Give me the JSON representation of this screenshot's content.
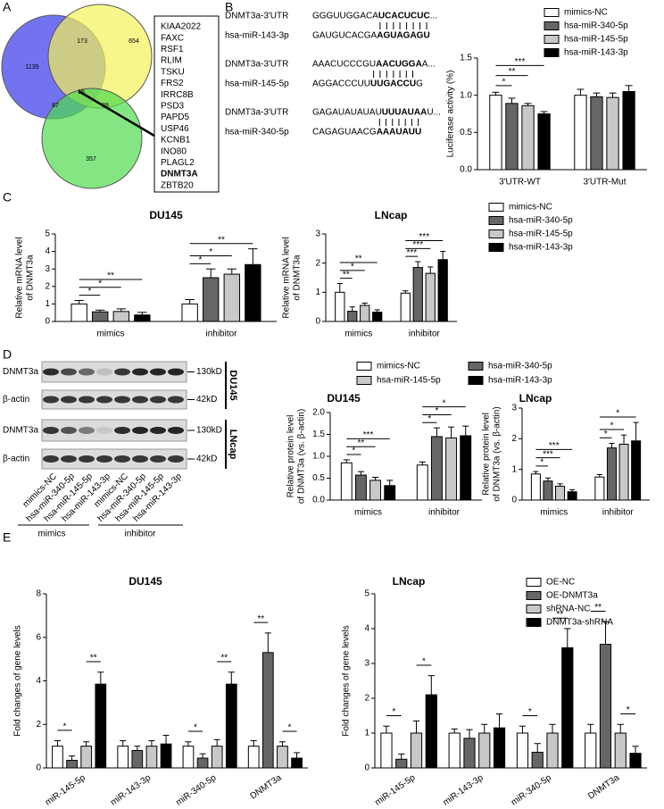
{
  "panels": [
    "A",
    "B",
    "C",
    "D",
    "E"
  ],
  "venn": {
    "counts": [
      1135,
      173,
      654,
      67,
      15,
      38,
      357
    ],
    "genes": [
      "KIAA2022",
      "FAXC",
      "RSF1",
      "RLIM",
      "TSKU",
      "FRS2",
      "IRRC8B",
      "PSD3",
      "PAPD5",
      "USP46",
      "KCNB1",
      "INO80",
      "PLAGL2",
      "DNMT3A",
      "ZBTB20"
    ],
    "bold_gene": 13
  },
  "sequences": [
    {
      "target": {
        "label": "DNMT3a-3′UTR",
        "parts": [
          "GGGUUGGACA",
          "UCACUCUC",
          "..."
        ]
      },
      "mirna": {
        "label": "hsa-miR-143-3p",
        "parts": [
          "GAUGUCACGA",
          "AGUAGAGU"
        ]
      }
    },
    {
      "target": {
        "label": "DNMT3a-3′UTR",
        "parts": [
          "AAACUCCCGU",
          "AACUGGA",
          "A..."
        ]
      },
      "mirna": {
        "label": "hsa-miR-145-5p",
        "parts": [
          "AGGACCCUU",
          "UUGACCU",
          "G"
        ]
      }
    },
    {
      "target": {
        "label": "DNMT3a-3′UTR",
        "parts": [
          "GAGAUAUAUAU",
          "UUUAUAA",
          "U..."
        ]
      },
      "mirna": {
        "label": "hsa-miR-340-5p",
        "parts": [
          "CAGAGUAACG",
          "AAAUAUU"
        ]
      }
    }
  ],
  "blot": {
    "rows": [
      {
        "label": "DNMT3a",
        "size": "130kD"
      },
      {
        "label": "β-actin",
        "size": "42kD"
      },
      {
        "label": "DNMT3a",
        "size": "130kD"
      },
      {
        "label": "β-actin",
        "size": "42kD"
      }
    ],
    "cells": [
      "DU145",
      "LNcap"
    ],
    "lanes": [
      "mimics-NC",
      "hsa-miR-340-5p",
      "hsa-miR-145-5p",
      "hsa-miR-143-3p",
      "mimics-NC",
      "hsa-miR-340-5p",
      "hsa-miR-145-5p",
      "hsa-miR-143-3p"
    ],
    "groups": [
      "mimics",
      "inhibitor"
    ]
  },
  "chart_data": [
    {
      "type": "bar",
      "ylabel": "Luciferase activity (%)",
      "categories": [
        "3′UTR-WT",
        "3′UTR-Mut"
      ],
      "ylim": [
        0,
        1.5
      ],
      "yticks": [
        {
          "value": 0,
          "label": "0.0"
        },
        {
          "value": 0.5,
          "label": "0.5"
        },
        {
          "value": 1,
          "label": "1.0"
        },
        {
          "value": 1.5,
          "label": "1.5"
        }
      ],
      "compare": "first",
      "legend": true,
      "series": [
        {
          "name": "mimics-NC",
          "color": "#ffffff",
          "values": [
            1.0,
            1.0
          ],
          "errors": [
            0.04,
            0.08
          ],
          "significance": [
            null,
            null
          ]
        },
        {
          "name": "hsa-miR-340-5p",
          "color": "#666666",
          "values": [
            0.89,
            0.98
          ],
          "errors": [
            0.07,
            0.05
          ],
          "significance": [
            "*",
            null
          ]
        },
        {
          "name": "hsa-miR-145-5p",
          "color": "#c8c8c8",
          "values": [
            0.86,
            0.97
          ],
          "errors": [
            0.03,
            0.06
          ],
          "significance": [
            "**",
            null
          ]
        },
        {
          "name": "hsa-miR-143-3p",
          "color": "#000000",
          "values": [
            0.75,
            1.05
          ],
          "errors": [
            0.03,
            0.08
          ],
          "significance": [
            "***",
            null
          ]
        }
      ]
    },
    {
      "type": "bar",
      "title": "DU145",
      "ylabel": [
        "Relative mRNA level",
        "of DNMT3a"
      ],
      "categories": [
        "mimics",
        "inhibitor"
      ],
      "ylim": [
        0,
        5
      ],
      "yticks": [
        0,
        1,
        2,
        3,
        4,
        5
      ],
      "compare": "first",
      "series": [
        {
          "name": "mimics-NC",
          "color": "#ffffff",
          "values": [
            1.0,
            1.0
          ],
          "errors": [
            0.2,
            0.25
          ],
          "significance": [
            null,
            null
          ]
        },
        {
          "name": "hsa-miR-340-5p",
          "color": "#666666",
          "values": [
            0.55,
            2.5
          ],
          "errors": [
            0.1,
            0.5
          ],
          "significance": [
            "*",
            "*"
          ]
        },
        {
          "name": "hsa-miR-145-5p",
          "color": "#c8c8c8",
          "values": [
            0.57,
            2.7
          ],
          "errors": [
            0.15,
            0.3
          ],
          "significance": [
            "*",
            "*"
          ]
        },
        {
          "name": "hsa-miR-143-3p",
          "color": "#000000",
          "values": [
            0.37,
            3.25
          ],
          "errors": [
            0.15,
            0.9
          ],
          "significance": [
            "**",
            "**"
          ]
        }
      ]
    },
    {
      "type": "bar",
      "title": "LNcap",
      "ylabel": [
        "Relative mRNA level",
        "of DNMT3a"
      ],
      "categories": [
        "mimics",
        "inhibitor"
      ],
      "ylim": [
        0,
        3
      ],
      "yticks": [
        0,
        1,
        2,
        3
      ],
      "compare": "first",
      "legend": true,
      "series": [
        {
          "name": "mimics-NC",
          "color": "#ffffff",
          "values": [
            1.0,
            0.97
          ],
          "errors": [
            0.3,
            0.08
          ],
          "significance": [
            null,
            null
          ]
        },
        {
          "name": "hsa-miR-340-5p",
          "color": "#666666",
          "values": [
            0.35,
            1.85
          ],
          "errors": [
            0.15,
            0.2
          ],
          "significance": [
            "**",
            "***"
          ]
        },
        {
          "name": "hsa-miR-145-5p",
          "color": "#c8c8c8",
          "values": [
            0.55,
            1.65
          ],
          "errors": [
            0.08,
            0.22
          ],
          "significance": [
            "*",
            "***"
          ]
        },
        {
          "name": "hsa-miR-143-3p",
          "color": "#000000",
          "values": [
            0.32,
            2.12
          ],
          "errors": [
            0.08,
            0.28
          ],
          "significance": [
            "**",
            "***"
          ]
        }
      ]
    },
    {
      "type": "bar",
      "title": "DU145",
      "ylabel": [
        "Relative protein level",
        "of DNMT3a (vs. β-actin)"
      ],
      "categories": [
        "mimics",
        "inhibitor"
      ],
      "ylim": [
        0,
        2
      ],
      "yticks": [
        {
          "value": 0,
          "label": "0.0"
        },
        {
          "value": 0.5,
          "label": "0.5"
        },
        {
          "value": 1,
          "label": "1.0"
        },
        {
          "value": 1.5,
          "label": "1.5"
        },
        {
          "value": 2,
          "label": "2.0"
        }
      ],
      "compare": "first",
      "legend": true,
      "series": [
        {
          "name": "mimics-NC",
          "color": "#ffffff",
          "values": [
            0.85,
            0.8
          ],
          "errors": [
            0.07,
            0.07
          ],
          "significance": [
            null,
            null
          ]
        },
        {
          "name": "hsa-miR-340-5p",
          "color": "#666666",
          "values": [
            0.57,
            1.45
          ],
          "errors": [
            0.08,
            0.2
          ],
          "significance": [
            "*",
            "*"
          ]
        },
        {
          "name": "hsa-miR-145-5p",
          "color": "#c8c8c8",
          "values": [
            0.45,
            1.42
          ],
          "errors": [
            0.07,
            0.25
          ],
          "significance": [
            "**",
            "*"
          ]
        },
        {
          "name": "hsa-miR-143-3p",
          "color": "#000000",
          "values": [
            0.33,
            1.47
          ],
          "errors": [
            0.12,
            0.22
          ],
          "significance": [
            "***",
            "*"
          ]
        }
      ]
    },
    {
      "type": "bar",
      "title": "LNcap",
      "ylabel": [
        "Relative protein level",
        "of DNMT3a (vs. β-actin)"
      ],
      "categories": [
        "mimics",
        "inhibitor"
      ],
      "ylim": [
        0,
        3
      ],
      "yticks": [
        0,
        1,
        2,
        3
      ],
      "compare": "first",
      "series": [
        {
          "name": "mimics-NC",
          "color": "#ffffff",
          "values": [
            0.85,
            0.75
          ],
          "errors": [
            0.08,
            0.08
          ],
          "significance": [
            null,
            null
          ]
        },
        {
          "name": "hsa-miR-340-5p",
          "color": "#666666",
          "values": [
            0.62,
            1.7
          ],
          "errors": [
            0.1,
            0.15
          ],
          "significance": [
            "*",
            "*"
          ]
        },
        {
          "name": "hsa-miR-145-5p",
          "color": "#c8c8c8",
          "values": [
            0.45,
            1.82
          ],
          "errors": [
            0.08,
            0.3
          ],
          "significance": [
            "***",
            "*"
          ]
        },
        {
          "name": "hsa-miR-143-3p",
          "color": "#000000",
          "values": [
            0.27,
            1.93
          ],
          "errors": [
            0.07,
            0.6
          ],
          "significance": [
            "***",
            "*"
          ]
        }
      ]
    },
    {
      "type": "bar",
      "title": "DU145",
      "ylabel": "Fold changes of gene levels",
      "categories": [
        "miR-145-5p",
        "miR-143-3p",
        "miR-340-5p",
        "DNMT3a"
      ],
      "ylim": [
        0,
        8
      ],
      "yticks": [
        0,
        2,
        4,
        6,
        8
      ],
      "compare": "pairs",
      "series": [
        {
          "name": "OE-NC",
          "color": "#ffffff",
          "values": [
            1.0,
            1.0,
            1.0,
            1.0
          ],
          "errors": [
            0.25,
            0.25,
            0.2,
            0.25
          ],
          "significance": [
            null,
            null,
            null,
            null
          ]
        },
        {
          "name": "OE-DNMT3a",
          "color": "#666666",
          "values": [
            0.35,
            0.8,
            0.45,
            5.3
          ],
          "errors": [
            0.2,
            0.2,
            0.2,
            0.9
          ],
          "significance": [
            "*",
            null,
            "*",
            "**"
          ]
        },
        {
          "name": "shRNA-NC",
          "color": "#c8c8c8",
          "values": [
            1.0,
            1.0,
            1.0,
            1.0
          ],
          "errors": [
            0.2,
            0.25,
            0.3,
            0.2
          ],
          "significance": [
            null,
            null,
            null,
            null
          ]
        },
        {
          "name": "DNMT3a-shRNA",
          "color": "#000000",
          "values": [
            3.85,
            1.1,
            3.85,
            0.45
          ],
          "errors": [
            0.55,
            0.4,
            0.55,
            0.25
          ],
          "significance": [
            "**",
            null,
            "**",
            "*"
          ]
        }
      ]
    },
    {
      "type": "bar",
      "title": "LNcap",
      "ylabel": "Fold changes of gene levels",
      "categories": [
        "miR-145-5p",
        "miR-143-3p",
        "miR-340-5p",
        "DNMT3a"
      ],
      "ylim": [
        0,
        5
      ],
      "yticks": [
        0,
        1,
        2,
        3,
        4,
        5
      ],
      "compare": "pairs",
      "legend": true,
      "series": [
        {
          "name": "OE-NC",
          "color": "#ffffff",
          "values": [
            1.0,
            1.0,
            1.0,
            1.0
          ],
          "errors": [
            0.2,
            0.12,
            0.2,
            0.25
          ],
          "significance": [
            null,
            null,
            null,
            null
          ]
        },
        {
          "name": "OE-DNMT3a",
          "color": "#666666",
          "values": [
            0.25,
            0.85,
            0.45,
            3.55
          ],
          "errors": [
            0.15,
            0.25,
            0.25,
            0.65
          ],
          "significance": [
            "*",
            null,
            "*",
            "**"
          ]
        },
        {
          "name": "shRNA-NC",
          "color": "#c8c8c8",
          "values": [
            1.0,
            1.0,
            1.0,
            1.0
          ],
          "errors": [
            0.35,
            0.25,
            0.25,
            0.25
          ],
          "significance": [
            null,
            null,
            null,
            null
          ]
        },
        {
          "name": "DNMT3a-shRNA",
          "color": "#000000",
          "values": [
            2.1,
            1.15,
            3.45,
            0.42
          ],
          "errors": [
            0.55,
            0.4,
            0.55,
            0.2
          ],
          "significance": [
            "*",
            null,
            "**",
            "*"
          ]
        }
      ]
    }
  ]
}
